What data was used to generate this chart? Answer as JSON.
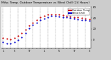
{
  "title": "Milw. Temp. Outdoor Temperature vs Wind Chill (24 Hours)",
  "bg_color": "#cccccc",
  "plot_bg_color": "#ffffff",
  "grid_color": "#888888",
  "temp_color": "#cc0000",
  "wind_chill_color": "#0000cc",
  "ylim": [
    -15,
    60
  ],
  "xlim": [
    -0.5,
    23.5
  ],
  "hours": [
    0,
    1,
    2,
    3,
    4,
    5,
    6,
    7,
    8,
    9,
    10,
    11,
    12,
    13,
    14,
    15,
    16,
    17,
    18,
    19,
    20,
    21,
    22,
    23
  ],
  "temp": [
    4,
    2,
    1,
    4,
    7,
    12,
    19,
    26,
    32,
    37,
    41,
    44,
    46,
    47,
    47,
    46,
    45,
    44,
    43,
    42,
    41,
    40,
    39,
    38
  ],
  "wind_chill": [
    -4,
    -6,
    -7,
    -4,
    0,
    5,
    13,
    21,
    27,
    32,
    36,
    39,
    42,
    44,
    44,
    43,
    42,
    41,
    40,
    39,
    38,
    37,
    36,
    35
  ],
  "yticks": [
    60,
    40,
    20,
    0
  ],
  "ytick_labels": [
    "60",
    "40",
    "20",
    "0"
  ],
  "xtick_positions": [
    0,
    1,
    2,
    3,
    4,
    5,
    6,
    7,
    8,
    9,
    10,
    11,
    12,
    13,
    14,
    15,
    16,
    17,
    18,
    19,
    20,
    21,
    22,
    23
  ],
  "xtick_labels": [
    "1",
    "",
    "",
    "5",
    "",
    "",
    "",
    "9",
    "",
    "",
    "",
    "1",
    "",
    "",
    "",
    "5",
    "",
    "",
    "",
    "9",
    "",
    "",
    "",
    "3"
  ],
  "marker_size": 1.2,
  "title_fontsize": 3.2,
  "tick_fontsize": 2.8,
  "legend_fontsize": 2.5,
  "grid_positions": [
    0,
    2,
    4,
    6,
    8,
    10,
    12,
    14,
    16,
    18,
    20,
    22
  ]
}
